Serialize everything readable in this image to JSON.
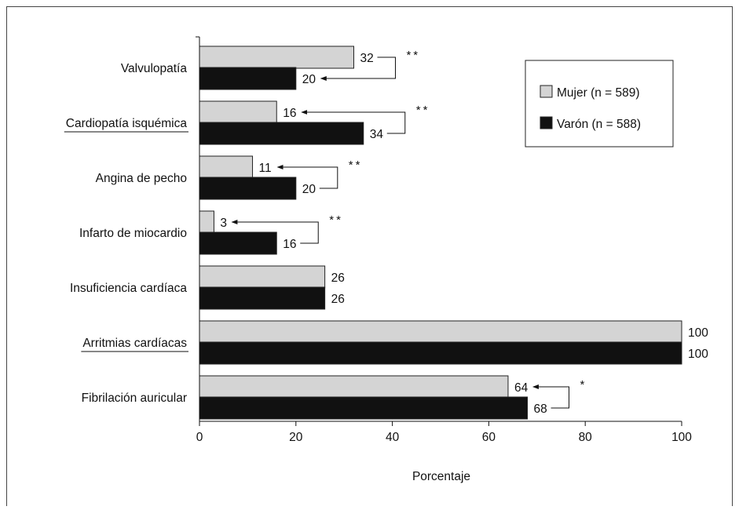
{
  "chart_data": {
    "type": "bar",
    "orientation": "horizontal",
    "xlabel": "Porcentaje",
    "xlim": [
      0,
      100
    ],
    "xticks": [
      0,
      20,
      40,
      60,
      80,
      100
    ],
    "categories": [
      "Valvulopatía",
      "Cardiopatía isquémica",
      "Angina de pecho",
      "Infarto de miocardio",
      "Insuficiencia cardíaca",
      "Arritmias cardíacas",
      "Fibrilación auricular"
    ],
    "underlined_categories": [
      "Cardiopatía isquémica",
      "Arritmias cardíacas"
    ],
    "series": [
      {
        "name": "Mujer (n = 589)",
        "color": "#d4d4d4",
        "values": [
          32,
          16,
          11,
          3,
          26,
          100,
          64
        ]
      },
      {
        "name": "Varón (n = 588)",
        "color": "#111111",
        "values": [
          20,
          34,
          20,
          16,
          26,
          100,
          68
        ]
      }
    ],
    "significance": [
      "**",
      "**",
      "**",
      "**",
      "",
      "",
      "*"
    ],
    "legend_position": "top-right"
  }
}
